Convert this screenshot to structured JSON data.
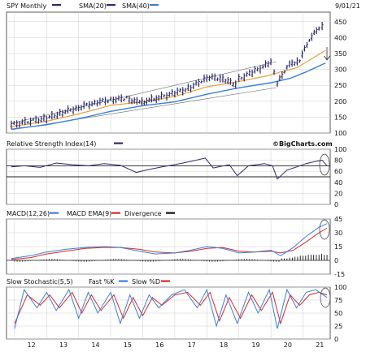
{
  "header": {
    "title": "SPY Monthly",
    "date": "9/01/21",
    "sma20_label": "SMA(20)",
    "sma40_label": "SMA(40)",
    "watermark": "©BigCharts.com"
  },
  "colors": {
    "price": "#2b2b6b",
    "sma20": "#e3a23a",
    "sma40": "#3b7fd6",
    "rsi": "#2b2b6b",
    "macd": "#3b7fd6",
    "macd_ema": "#d42b2b",
    "divergence": "#111111",
    "fast_k": "#3b7fd6",
    "slow_d": "#d42b2b",
    "legend_dark": "#2b2b6b"
  },
  "chart_data": [
    {
      "type": "line",
      "panel": "price",
      "title": "SPY Monthly",
      "series": [
        {
          "name": "SPY Monthly",
          "kind": "ohlc-bars",
          "x": [
            2011.9,
            2012.5,
            2013.0,
            2013.5,
            2014.0,
            2014.5,
            2015.0,
            2015.5,
            2015.9,
            2016.2,
            2016.5,
            2017.0,
            2017.5,
            2018.0,
            2018.5,
            2018.9,
            2019.0,
            2019.5,
            2020.0,
            2020.2,
            2020.5,
            2020.9,
            2021.2,
            2021.5,
            2021.7
          ],
          "values": [
            126,
            138,
            146,
            165,
            180,
            196,
            205,
            209,
            195,
            203,
            212,
            226,
            243,
            275,
            272,
            250,
            270,
            295,
            322,
            255,
            310,
            330,
            395,
            430,
            450
          ]
        },
        {
          "name": "SMA(20)",
          "x": [
            2011.9,
            2013.0,
            2014.0,
            2015.0,
            2016.0,
            2017.0,
            2018.0,
            2019.0,
            2019.9,
            2020.3,
            2020.8,
            2021.3,
            2021.7
          ],
          "values": [
            120,
            137,
            160,
            187,
            198,
            215,
            245,
            262,
            280,
            292,
            305,
            335,
            360
          ]
        },
        {
          "name": "SMA(40)",
          "x": [
            2011.9,
            2013.0,
            2014.0,
            2015.0,
            2016.0,
            2017.0,
            2018.0,
            2019.0,
            2020.0,
            2020.6,
            2021.1,
            2021.7
          ],
          "values": [
            112,
            126,
            145,
            168,
            186,
            198,
            222,
            242,
            258,
            272,
            292,
            320
          ]
        }
      ],
      "ylim": [
        100,
        480
      ],
      "yticks": [
        "450",
        "400",
        "350",
        "300",
        "250",
        "200",
        "150",
        "100"
      ],
      "ytick_values": [
        450,
        400,
        350,
        300,
        250,
        200,
        150,
        100
      ]
    },
    {
      "type": "line",
      "panel": "rsi",
      "title": "Relative Strength Index(14)",
      "series": [
        {
          "name": "Relative Strength Index(14)",
          "x": [
            2011.9,
            2012.3,
            2012.8,
            2013.3,
            2013.8,
            2014.3,
            2014.8,
            2015.3,
            2015.8,
            2016.1,
            2016.6,
            2017.0,
            2017.5,
            2017.95,
            2018.2,
            2018.7,
            2018.95,
            2019.3,
            2019.8,
            2020.05,
            2020.2,
            2020.5,
            2020.8,
            2021.1,
            2021.4,
            2021.6,
            2021.75
          ],
          "values": [
            68,
            70,
            67,
            75,
            72,
            70,
            74,
            71,
            58,
            62,
            68,
            72,
            78,
            84,
            66,
            72,
            52,
            70,
            74,
            70,
            46,
            62,
            68,
            74,
            78,
            80,
            70
          ]
        }
      ],
      "ylim": [
        0,
        100
      ],
      "yticks": [
        "100",
        "80",
        "60",
        "40",
        "20",
        "0"
      ],
      "ytick_values": [
        100,
        80,
        60,
        40,
        20,
        0
      ],
      "reference_lines": [
        70,
        50
      ]
    },
    {
      "type": "line",
      "panel": "macd",
      "title": "MACD(12,26)",
      "series": [
        {
          "name": "MACD(12,26)",
          "x": [
            2011.9,
            2012.5,
            2013.0,
            2013.6,
            2014.2,
            2014.8,
            2015.3,
            2015.9,
            2016.4,
            2017.0,
            2017.5,
            2018.0,
            2018.5,
            2019.0,
            2019.5,
            2020.0,
            2020.3,
            2020.7,
            2021.1,
            2021.5,
            2021.75
          ],
          "values": [
            2,
            5,
            9,
            12,
            14,
            15,
            14,
            10,
            7,
            8,
            11,
            15,
            13,
            8,
            9,
            11,
            5,
            14,
            26,
            36,
            40
          ]
        },
        {
          "name": "EMA(9)",
          "x": [
            2011.9,
            2012.5,
            2013.0,
            2013.6,
            2014.2,
            2014.8,
            2015.3,
            2015.9,
            2016.4,
            2017.0,
            2017.5,
            2018.0,
            2018.5,
            2019.0,
            2019.5,
            2020.0,
            2020.3,
            2020.7,
            2021.1,
            2021.5,
            2021.75
          ],
          "values": [
            1,
            3,
            7,
            10,
            13,
            14,
            14,
            12,
            9,
            8,
            10,
            13,
            14,
            10,
            9,
            10,
            8,
            11,
            20,
            30,
            35
          ]
        },
        {
          "name": "Divergence",
          "kind": "histogram",
          "x": [
            2020.4,
            2020.6,
            2020.8,
            2021.0,
            2021.2,
            2021.4,
            2021.6,
            2021.75
          ],
          "values": [
            2,
            3,
            4,
            5,
            6,
            6,
            7,
            6
          ]
        }
      ],
      "ylim": [
        -15,
        45
      ],
      "yticks": [
        "45",
        "30",
        "15",
        "0",
        "-15"
      ],
      "ytick_values": [
        45,
        30,
        15,
        0,
        -15
      ]
    },
    {
      "type": "line",
      "panel": "stochastic",
      "title": "Slow Stochastic(5,5)",
      "series": [
        {
          "name": "Fast %K",
          "x": [
            2012.0,
            2012.3,
            2012.7,
            2013.0,
            2013.3,
            2013.7,
            2014.0,
            2014.3,
            2014.6,
            2015.0,
            2015.3,
            2015.6,
            2015.9,
            2016.2,
            2016.5,
            2016.9,
            2017.3,
            2017.7,
            2018.0,
            2018.3,
            2018.6,
            2018.95,
            2019.3,
            2019.6,
            2019.95,
            2020.2,
            2020.5,
            2020.8,
            2021.1,
            2021.4,
            2021.75
          ],
          "values": [
            20,
            95,
            60,
            90,
            55,
            95,
            40,
            90,
            50,
            90,
            30,
            85,
            40,
            85,
            60,
            85,
            95,
            60,
            95,
            25,
            85,
            30,
            90,
            50,
            95,
            20,
            95,
            60,
            90,
            95,
            80
          ]
        },
        {
          "name": "Slow %D",
          "x": [
            2012.0,
            2012.4,
            2012.8,
            2013.1,
            2013.4,
            2013.8,
            2014.1,
            2014.4,
            2014.7,
            2015.1,
            2015.4,
            2015.7,
            2016.0,
            2016.3,
            2016.6,
            2017.0,
            2017.4,
            2017.8,
            2018.1,
            2018.4,
            2018.7,
            2019.05,
            2019.4,
            2019.7,
            2020.05,
            2020.3,
            2020.6,
            2020.9,
            2021.2,
            2021.5,
            2021.75
          ],
          "values": [
            30,
            85,
            65,
            85,
            60,
            90,
            50,
            85,
            55,
            85,
            40,
            80,
            45,
            80,
            65,
            85,
            90,
            65,
            90,
            35,
            80,
            40,
            85,
            55,
            90,
            30,
            85,
            65,
            85,
            90,
            85
          ]
        }
      ],
      "ylim": [
        0,
        100
      ],
      "yticks": [
        "100",
        "75",
        "50",
        "25",
        "0"
      ],
      "ytick_values": [
        100,
        75,
        50,
        25,
        0
      ]
    }
  ],
  "panels": {
    "rsi": {
      "label": "Relative Strength Index(14)"
    },
    "macd": {
      "label": "MACD(12,26)",
      "ema_label": "MACD EMA(9)",
      "div_label": "Divergence"
    },
    "stoch": {
      "label": "Slow Stochastic(5,5)",
      "k_label": "Fast %K",
      "d_label": "Slow %D"
    }
  },
  "xaxis": {
    "labels": [
      "12",
      "13",
      "14",
      "15",
      "16",
      "17",
      "18",
      "19",
      "20",
      "21"
    ],
    "values": [
      2012,
      2013,
      2014,
      2015,
      2016,
      2017,
      2018,
      2019,
      2020,
      2021
    ]
  }
}
